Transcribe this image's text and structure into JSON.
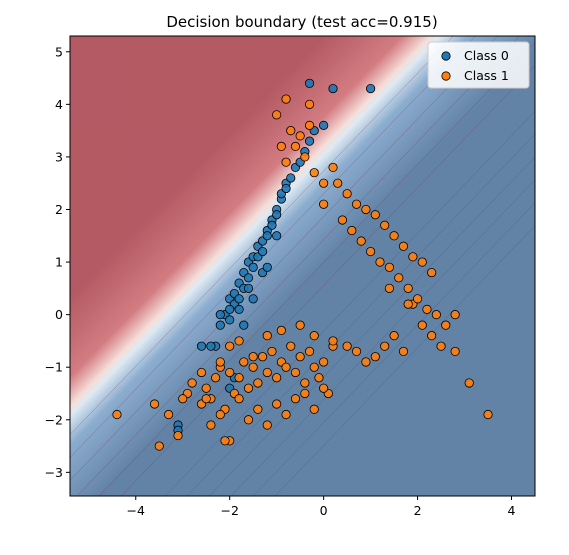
{
  "chart_data": {
    "type": "scatter",
    "title": "Decision boundary (test acc=0.915)",
    "xlabel": "",
    "ylabel": "",
    "xlim": [
      -5.4,
      4.5
    ],
    "ylim": [
      -3.45,
      5.3
    ],
    "x_ticks": [
      -4,
      -2,
      0,
      2,
      4
    ],
    "y_ticks": [
      -3,
      -2,
      -1,
      0,
      1,
      2,
      3,
      4,
      5
    ],
    "x_tick_labels": [
      "−4",
      "−2",
      "0",
      "2",
      "4"
    ],
    "y_tick_labels": [
      "−3",
      "−2",
      "−1",
      "0",
      "1",
      "2",
      "3",
      "4",
      "5"
    ],
    "background": "filled contour of predicted probability (red = class 0 region, blue = class 1 region)",
    "legend": {
      "position": "top-right",
      "entries": [
        "Class 0",
        "Class 1"
      ]
    },
    "colors": {
      "class0": "#1f77b4",
      "class1": "#ff7f0e",
      "region_class0": "#a0303c",
      "region_class1": "#3c6490",
      "boundary_light": "#f4f0ee"
    },
    "series": [
      {
        "name": "Class 0",
        "x": [
          -2.3,
          -2.2,
          -2.1,
          -2.0,
          -2.0,
          -1.9,
          -1.9,
          -1.8,
          -1.8,
          -1.7,
          -1.7,
          -1.6,
          -1.6,
          -1.5,
          -1.5,
          -1.4,
          -1.4,
          -1.3,
          -1.3,
          -1.2,
          -1.2,
          -1.1,
          -1.1,
          -1.0,
          -1.0,
          -0.9,
          -0.9,
          -0.8,
          -0.8,
          -0.7,
          -0.6,
          -0.5,
          -0.4,
          -0.3,
          -0.2,
          0.0,
          0.2,
          1.0,
          -2.2,
          -2.0,
          -1.8,
          -1.6,
          -1.5,
          -1.3,
          -2.0,
          -1.9,
          -1.7,
          -2.4,
          -2.6,
          -3.1,
          -3.1,
          -1.2,
          -0.3,
          -1.0
        ],
        "y": [
          -0.6,
          -0.2,
          0.0,
          0.3,
          -0.1,
          0.4,
          0.2,
          0.6,
          0.3,
          0.8,
          0.5,
          1.0,
          0.7,
          1.1,
          0.9,
          1.3,
          1.1,
          1.4,
          1.2,
          1.6,
          1.5,
          1.8,
          1.7,
          2.0,
          1.9,
          2.2,
          2.3,
          2.5,
          2.4,
          2.6,
          2.8,
          2.9,
          3.1,
          3.3,
          3.5,
          3.6,
          4.3,
          4.3,
          0.0,
          0.1,
          0.1,
          0.5,
          0.3,
          0.8,
          -1.4,
          -1.2,
          -0.2,
          -0.6,
          -0.6,
          -2.1,
          -2.2,
          0.9,
          4.4,
          1.5
        ]
      },
      {
        "name": "Class 1",
        "x": [
          -4.4,
          -3.5,
          -3.3,
          -3.1,
          -2.9,
          -2.8,
          -2.6,
          -2.5,
          -2.4,
          -2.3,
          -2.2,
          -2.1,
          -2.0,
          -1.9,
          -1.8,
          -1.7,
          -1.6,
          -1.5,
          -1.4,
          -1.3,
          -1.2,
          -1.1,
          -1.0,
          -0.9,
          -0.8,
          -0.7,
          -0.6,
          -0.5,
          -0.4,
          -0.3,
          -0.2,
          -0.1,
          0.0,
          0.1,
          0.2,
          -2.6,
          -2.4,
          -2.2,
          -2.0,
          -1.8,
          -1.6,
          -1.4,
          -1.2,
          -1.0,
          -0.8,
          -0.6,
          -0.4,
          -0.2,
          0.0,
          -2.2,
          -2.0,
          -1.8,
          -1.5,
          -1.2,
          -0.9,
          -0.5,
          -0.2,
          0.2,
          0.5,
          0.7,
          0.9,
          1.1,
          1.3,
          1.5,
          1.7,
          1.9,
          2.1,
          2.3,
          2.5,
          2.8,
          3.1,
          3.5,
          0.3,
          0.5,
          0.7,
          0.9,
          1.1,
          1.3,
          1.5,
          1.7,
          1.9,
          2.1,
          2.3,
          0.4,
          0.6,
          0.8,
          1.0,
          1.2,
          1.4,
          1.6,
          1.8,
          2.0,
          2.2,
          2.4,
          2.6,
          2.8,
          -0.8,
          -0.6,
          -0.4,
          -0.2,
          0.0,
          0.2,
          -0.9,
          -0.7,
          -0.5,
          -0.3,
          -1.0,
          -0.8,
          0.0,
          1.4,
          1.8,
          -0.3,
          -2.5,
          -2.1,
          -3.6,
          -3.0
        ],
        "y": [
          -1.9,
          -2.5,
          -1.9,
          -2.3,
          -1.5,
          -1.3,
          -1.1,
          -1.4,
          -1.6,
          -1.2,
          -1.0,
          -1.8,
          -1.1,
          -1.5,
          -1.2,
          -0.9,
          -1.4,
          -1.0,
          -1.3,
          -0.8,
          -1.1,
          -0.7,
          -1.2,
          -0.9,
          -1.0,
          -0.6,
          -1.1,
          -0.8,
          -1.3,
          -0.7,
          -1.0,
          -1.2,
          -0.9,
          -1.5,
          -0.6,
          -1.7,
          -2.1,
          -1.9,
          -2.4,
          -1.6,
          -2.0,
          -1.8,
          -2.1,
          -1.7,
          -1.9,
          -1.6,
          -1.5,
          -1.8,
          -1.4,
          -0.9,
          -0.6,
          -0.5,
          -0.8,
          -0.4,
          -0.3,
          -0.2,
          -0.4,
          -0.5,
          -0.6,
          -0.7,
          -0.9,
          -0.8,
          -0.6,
          -0.4,
          -0.7,
          0.2,
          -0.2,
          -0.4,
          -0.6,
          -0.7,
          -1.3,
          -1.9,
          2.5,
          2.3,
          2.1,
          2.0,
          1.9,
          1.7,
          1.5,
          1.3,
          1.1,
          1.0,
          0.8,
          1.8,
          1.6,
          1.4,
          1.2,
          1.0,
          0.9,
          0.7,
          0.5,
          0.3,
          0.1,
          0.0,
          -0.2,
          0.0,
          2.9,
          3.2,
          3.0,
          2.7,
          2.5,
          2.8,
          3.2,
          3.5,
          3.4,
          3.6,
          3.8,
          4.1,
          2.1,
          0.5,
          0.2,
          4.0,
          -1.6,
          -2.4,
          -1.7,
          -1.6
        ]
      }
    ]
  }
}
